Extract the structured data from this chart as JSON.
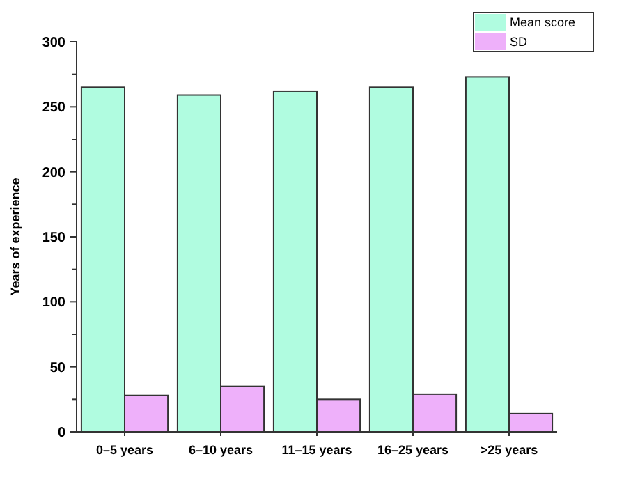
{
  "chart_data": {
    "type": "bar",
    "ylabel": "Years of experience",
    "categories": [
      "0–5 years",
      "6–10 years",
      "11–15 years",
      "16–25 years",
      ">25 years"
    ],
    "series": [
      {
        "name": "Mean score",
        "color": "#b0fce0",
        "values": [
          265,
          259,
          262,
          265,
          273
        ]
      },
      {
        "name": "SD",
        "color": "#eeb0fa",
        "values": [
          28,
          35,
          25,
          29,
          14
        ]
      }
    ],
    "ylim": [
      0,
      300
    ],
    "yticks": [
      0,
      {
        "value": 25,
        "label": null
      },
      50,
      {
        "value": 75,
        "label": null
      },
      100,
      {
        "value": 125,
        "label": null
      },
      150,
      {
        "value": 175,
        "label": null
      },
      200,
      {
        "value": 225,
        "label": null
      },
      250,
      {
        "value": 275,
        "label": null
      },
      300
    ],
    "legend": "top right"
  }
}
